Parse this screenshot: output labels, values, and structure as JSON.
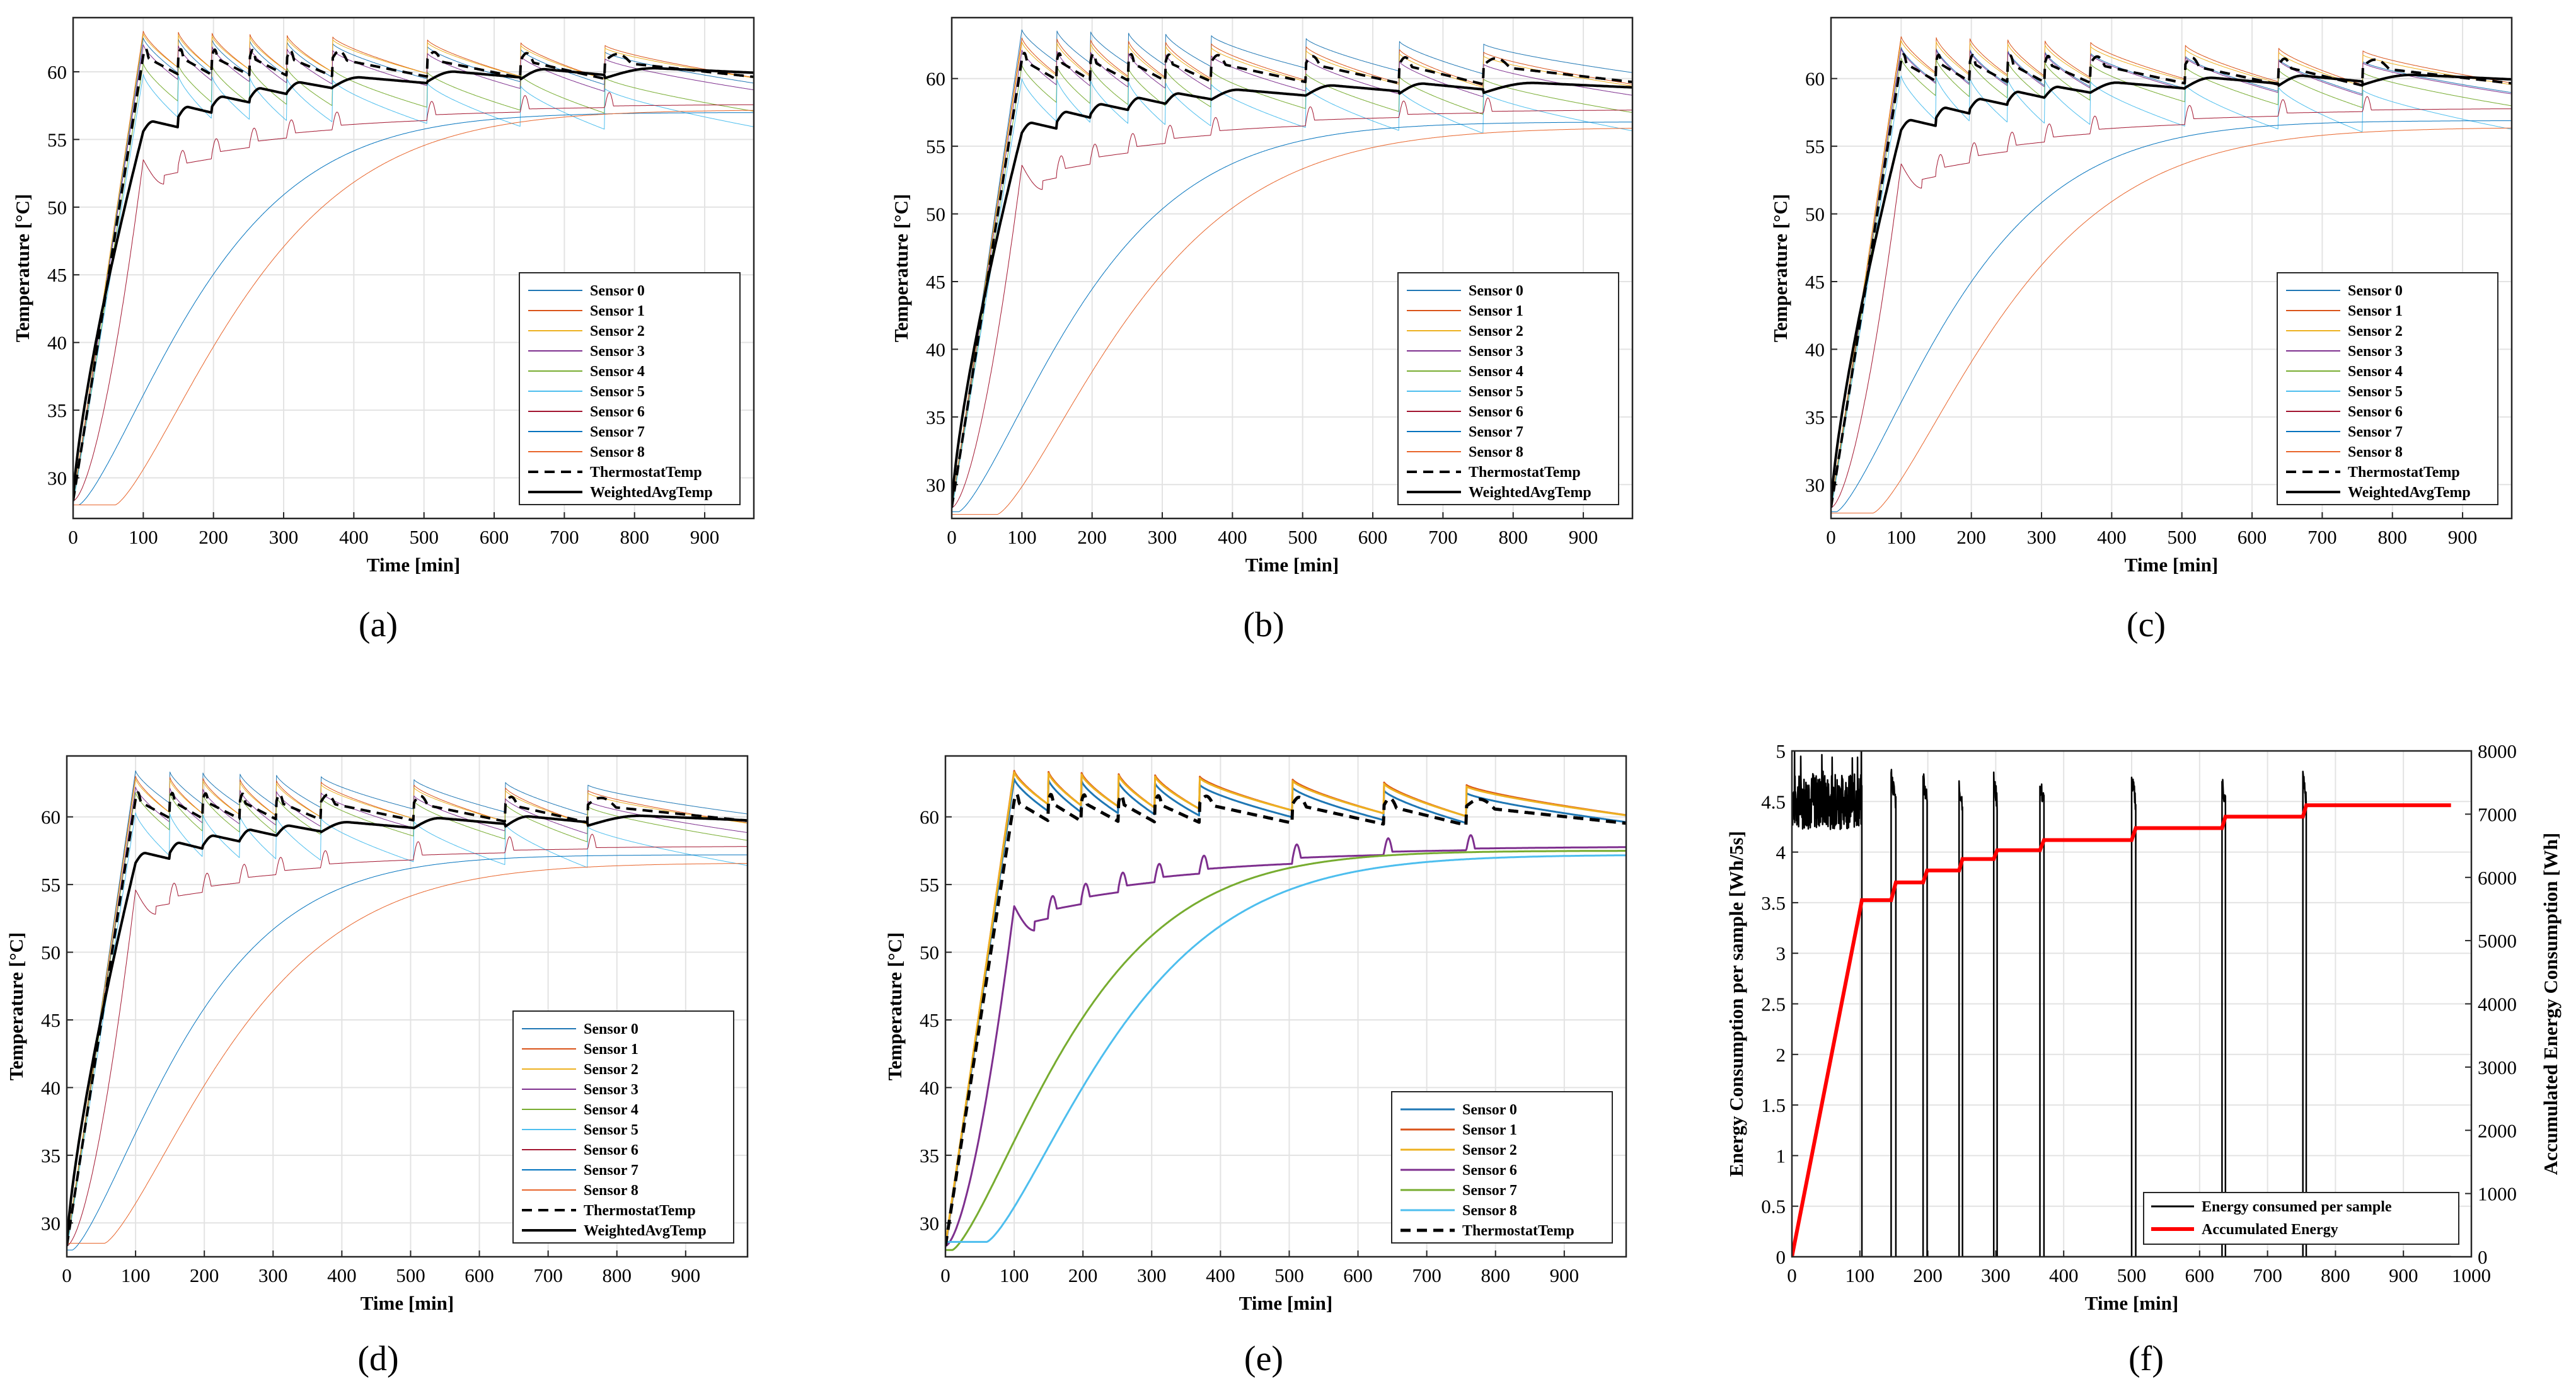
{
  "colors": {
    "s0": "#1f77b4",
    "s1": "#d95319",
    "s2": "#edb120",
    "s3": "#7e2f8e",
    "s4": "#77ac30",
    "s5": "#4dbeee",
    "s6": "#a2142f",
    "s7": "#0072bd",
    "s8": "#e8642a",
    "thermostat": "#000000",
    "weighted": "#000000",
    "energy": "#000000",
    "accum": "#ff0000",
    "grid": "#e3e3e3",
    "axis": "#262626"
  },
  "chart_data": [
    {
      "id": "a",
      "type": "line",
      "caption": "(a)",
      "xlabel": "Time [min]",
      "ylabel": "Temperature [°C]",
      "xlim": [
        0,
        970
      ],
      "ylim": [
        27,
        64
      ],
      "xticks": [
        "0",
        "100",
        "200",
        "300",
        "400",
        "500",
        "600",
        "700",
        "800",
        "900"
      ],
      "yticks": [
        "30",
        "35",
        "40",
        "45",
        "50",
        "55",
        "60"
      ],
      "grid": true,
      "legend_position": "lower-right",
      "heat_end": 100,
      "cycles": [
        100,
        150,
        198,
        252,
        305,
        370,
        505,
        638,
        758
      ],
      "series": [
        {
          "name": "Sensor 0",
          "color_key": "s0",
          "kind": "top",
          "start": 28.2,
          "top": 62.5,
          "drop": 2.6,
          "width": 1
        },
        {
          "name": "Sensor 1",
          "color_key": "s1",
          "kind": "top",
          "start": 28.3,
          "top": 63.0,
          "drop": 2.7,
          "width": 1
        },
        {
          "name": "Sensor 2",
          "color_key": "s2",
          "kind": "top",
          "start": 28.4,
          "top": 62.8,
          "drop": 2.5,
          "width": 1
        },
        {
          "name": "Sensor 3",
          "color_key": "s3",
          "kind": "top",
          "start": 28.2,
          "top": 62.0,
          "drop": 2.6,
          "width": 1
        },
        {
          "name": "Sensor 4",
          "color_key": "s4",
          "kind": "top",
          "start": 28.1,
          "top": 60.6,
          "drop": 2.8,
          "width": 1
        },
        {
          "name": "Sensor 5",
          "color_key": "s5",
          "kind": "top",
          "start": 28.0,
          "top": 59.8,
          "drop": 3.2,
          "width": 1
        },
        {
          "name": "Sensor 6",
          "color_key": "s6",
          "kind": "stair",
          "start": 28.3,
          "peak": 53.5,
          "end": 57.8,
          "width": 1
        },
        {
          "name": "Sensor 7",
          "color_key": "s7",
          "kind": "smooth",
          "start": 28.0,
          "end": 57.0,
          "tau": 210,
          "delay": 8,
          "width": 1
        },
        {
          "name": "Sensor 8",
          "color_key": "s8",
          "kind": "smooth",
          "start": 28.0,
          "end": 57.2,
          "tau": 230,
          "delay": 60,
          "width": 1
        },
        {
          "name": "ThermostatTemp",
          "color_key": "thermostat",
          "kind": "thermo",
          "start": 28.3,
          "top": 61.2,
          "drop": 1.4,
          "width": 4,
          "dash": "16,10"
        },
        {
          "name": "WeightedAvgTemp",
          "color_key": "weighted",
          "kind": "weighted",
          "start": 28.3,
          "peak": 55.6,
          "end": 59.6,
          "width": 4
        }
      ]
    },
    {
      "id": "b",
      "type": "line",
      "caption": "(b)",
      "xlabel": "Time [min]",
      "ylabel": "Temperature [°C]",
      "xlim": [
        0,
        970
      ],
      "ylim": [
        27.5,
        64.5
      ],
      "xticks": [
        "0",
        "100",
        "200",
        "300",
        "400",
        "500",
        "600",
        "700",
        "800",
        "900"
      ],
      "yticks": [
        "30",
        "35",
        "40",
        "45",
        "50",
        "55",
        "60"
      ],
      "grid": true,
      "legend_position": "lower-right",
      "heat_end": 100,
      "cycles": [
        100,
        150,
        198,
        252,
        305,
        370,
        505,
        638,
        758
      ],
      "series": [
        {
          "name": "Sensor 0",
          "color_key": "s0",
          "kind": "top",
          "start": 28.2,
          "top": 63.6,
          "drop": 2.4,
          "width": 1
        },
        {
          "name": "Sensor 1",
          "color_key": "s1",
          "kind": "top",
          "start": 28.3,
          "top": 63.0,
          "drop": 2.7,
          "width": 1
        },
        {
          "name": "Sensor 2",
          "color_key": "s2",
          "kind": "top",
          "start": 28.4,
          "top": 62.7,
          "drop": 2.5,
          "width": 1
        },
        {
          "name": "Sensor 3",
          "color_key": "s3",
          "kind": "top",
          "start": 28.2,
          "top": 62.1,
          "drop": 2.6,
          "width": 1
        },
        {
          "name": "Sensor 4",
          "color_key": "s4",
          "kind": "top",
          "start": 28.1,
          "top": 61.0,
          "drop": 2.8,
          "width": 1
        },
        {
          "name": "Sensor 5",
          "color_key": "s5",
          "kind": "top",
          "start": 28.0,
          "top": 60.0,
          "drop": 3.2,
          "width": 1
        },
        {
          "name": "Sensor 6",
          "color_key": "s6",
          "kind": "stair",
          "start": 28.3,
          "peak": 53.6,
          "end": 57.9,
          "width": 1
        },
        {
          "name": "Sensor 7",
          "color_key": "s7",
          "kind": "smooth",
          "start": 28.0,
          "end": 56.8,
          "tau": 215,
          "delay": 10,
          "width": 1
        },
        {
          "name": "Sensor 8",
          "color_key": "s8",
          "kind": "smooth",
          "start": 27.8,
          "end": 56.4,
          "tau": 240,
          "delay": 65,
          "width": 1
        },
        {
          "name": "ThermostatTemp",
          "color_key": "thermostat",
          "kind": "thermo",
          "start": 28.3,
          "top": 61.4,
          "drop": 1.5,
          "width": 4,
          "dash": "16,10"
        },
        {
          "name": "WeightedAvgTemp",
          "color_key": "weighted",
          "kind": "weighted",
          "start": 28.3,
          "peak": 56.0,
          "end": 59.0,
          "width": 4
        }
      ]
    },
    {
      "id": "c",
      "type": "line",
      "caption": "(c)",
      "xlabel": "Time [min]",
      "ylabel": "Temperature [°C]",
      "xlim": [
        0,
        970
      ],
      "ylim": [
        27.5,
        64.5
      ],
      "xticks": [
        "0",
        "100",
        "200",
        "300",
        "400",
        "500",
        "600",
        "700",
        "800",
        "900"
      ],
      "yticks": [
        "30",
        "35",
        "40",
        "45",
        "50",
        "55",
        "60"
      ],
      "grid": true,
      "legend_position": "lower-right",
      "heat_end": 100,
      "cycles": [
        100,
        150,
        198,
        252,
        305,
        370,
        505,
        638,
        758
      ],
      "series": [
        {
          "name": "Sensor 0",
          "color_key": "s0",
          "kind": "top",
          "start": 28.2,
          "top": 62.3,
          "drop": 2.6,
          "width": 1
        },
        {
          "name": "Sensor 1",
          "color_key": "s1",
          "kind": "top",
          "start": 28.3,
          "top": 63.1,
          "drop": 2.7,
          "width": 1
        },
        {
          "name": "Sensor 2",
          "color_key": "s2",
          "kind": "top",
          "start": 28.4,
          "top": 62.8,
          "drop": 2.5,
          "width": 1
        },
        {
          "name": "Sensor 3",
          "color_key": "s3",
          "kind": "top",
          "start": 28.2,
          "top": 62.2,
          "drop": 2.6,
          "width": 1
        },
        {
          "name": "Sensor 4",
          "color_key": "s4",
          "kind": "top",
          "start": 28.1,
          "top": 61.5,
          "drop": 2.8,
          "width": 1
        },
        {
          "name": "Sensor 5",
          "color_key": "s5",
          "kind": "top",
          "start": 28.0,
          "top": 60.2,
          "drop": 3.3,
          "width": 1
        },
        {
          "name": "Sensor 6",
          "color_key": "s6",
          "kind": "stair",
          "start": 28.3,
          "peak": 53.7,
          "end": 58.0,
          "width": 1
        },
        {
          "name": "Sensor 7",
          "color_key": "s7",
          "kind": "smooth",
          "start": 28.0,
          "end": 56.9,
          "tau": 210,
          "delay": 8,
          "width": 1
        },
        {
          "name": "Sensor 8",
          "color_key": "s8",
          "kind": "smooth",
          "start": 27.9,
          "end": 56.4,
          "tau": 235,
          "delay": 60,
          "width": 1
        },
        {
          "name": "ThermostatTemp",
          "color_key": "thermostat",
          "kind": "thermo",
          "start": 28.3,
          "top": 61.3,
          "drop": 1.5,
          "width": 4,
          "dash": "16,10"
        },
        {
          "name": "WeightedAvgTemp",
          "color_key": "weighted",
          "kind": "weighted",
          "start": 28.3,
          "peak": 56.2,
          "end": 59.6,
          "width": 4
        }
      ]
    },
    {
      "id": "d",
      "type": "line",
      "caption": "(d)",
      "xlabel": "Time [min]",
      "ylabel": "Temperature [°C]",
      "xlim": [
        0,
        990
      ],
      "ylim": [
        27.5,
        64.5
      ],
      "xticks": [
        "0",
        "100",
        "200",
        "300",
        "400",
        "500",
        "600",
        "700",
        "800",
        "900"
      ],
      "yticks": [
        "30",
        "35",
        "40",
        "45",
        "50",
        "55",
        "60"
      ],
      "grid": true,
      "legend_position": "lower-right",
      "heat_end": 100,
      "cycles": [
        100,
        150,
        198,
        252,
        305,
        370,
        505,
        638,
        758
      ],
      "series": [
        {
          "name": "Sensor 0",
          "color_key": "s0",
          "kind": "top",
          "start": 28.2,
          "top": 63.4,
          "drop": 2.4,
          "width": 1
        },
        {
          "name": "Sensor 1",
          "color_key": "s1",
          "kind": "top",
          "start": 28.3,
          "top": 63.0,
          "drop": 2.7,
          "width": 1
        },
        {
          "name": "Sensor 2",
          "color_key": "s2",
          "kind": "top",
          "start": 28.4,
          "top": 62.8,
          "drop": 2.5,
          "width": 1
        },
        {
          "name": "Sensor 3",
          "color_key": "s3",
          "kind": "top",
          "start": 28.2,
          "top": 62.2,
          "drop": 2.6,
          "width": 1
        },
        {
          "name": "Sensor 4",
          "color_key": "s4",
          "kind": "top",
          "start": 28.1,
          "top": 61.8,
          "drop": 2.8,
          "width": 1
        },
        {
          "name": "Sensor 5",
          "color_key": "s5",
          "kind": "top",
          "start": 28.0,
          "top": 60.3,
          "drop": 3.2,
          "width": 1
        },
        {
          "name": "Sensor 6",
          "color_key": "s6",
          "kind": "stair",
          "start": 28.3,
          "peak": 54.6,
          "end": 58.0,
          "width": 1
        },
        {
          "name": "Sensor 7",
          "color_key": "s7",
          "kind": "smooth",
          "start": 28.0,
          "end": 57.2,
          "tau": 200,
          "delay": 8,
          "width": 1
        },
        {
          "name": "Sensor 8",
          "color_key": "s8",
          "kind": "smooth",
          "start": 28.5,
          "end": 56.6,
          "tau": 230,
          "delay": 55,
          "width": 1
        },
        {
          "name": "ThermostatTemp",
          "color_key": "thermostat",
          "kind": "thermo",
          "start": 28.3,
          "top": 61.3,
          "drop": 1.4,
          "width": 4,
          "dash": "16,10"
        },
        {
          "name": "WeightedAvgTemp",
          "color_key": "weighted",
          "kind": "weighted",
          "start": 28.3,
          "peak": 56.6,
          "end": 59.4,
          "width": 4
        }
      ]
    },
    {
      "id": "e",
      "type": "line",
      "caption": "(e)",
      "xlabel": "Time [min]",
      "ylabel": "Temperature [°C]",
      "xlim": [
        0,
        990
      ],
      "ylim": [
        27.5,
        64.5
      ],
      "xticks": [
        "0",
        "100",
        "200",
        "300",
        "400",
        "500",
        "600",
        "700",
        "800",
        "900"
      ],
      "yticks": [
        "30",
        "35",
        "40",
        "45",
        "50",
        "55",
        "60"
      ],
      "grid": true,
      "legend_position": "lower-right",
      "heat_end": 100,
      "cycles": [
        100,
        150,
        198,
        252,
        305,
        370,
        505,
        638,
        758
      ],
      "series": [
        {
          "name": "Sensor 0",
          "color_key": "s0",
          "kind": "top",
          "start": 28.2,
          "top": 62.8,
          "drop": 2.4,
          "width": 3
        },
        {
          "name": "Sensor 1",
          "color_key": "s1",
          "kind": "top",
          "start": 28.3,
          "top": 63.4,
          "drop": 2.5,
          "width": 3
        },
        {
          "name": "Sensor 2",
          "color_key": "s2",
          "kind": "top",
          "start": 28.4,
          "top": 63.3,
          "drop": 2.4,
          "width": 3
        },
        {
          "name": "Sensor 6",
          "color_key": "s3",
          "kind": "stair",
          "start": 28.3,
          "peak": 53.4,
          "end": 58.0,
          "width": 3
        },
        {
          "name": "Sensor 7",
          "color_key": "s4",
          "kind": "smooth",
          "start": 28.0,
          "end": 57.5,
          "tau": 210,
          "delay": 10,
          "width": 3
        },
        {
          "name": "Sensor 8",
          "color_key": "s5",
          "kind": "smooth",
          "start": 28.6,
          "end": 57.2,
          "tau": 230,
          "delay": 60,
          "width": 3
        },
        {
          "name": "ThermostatTemp",
          "color_key": "thermostat",
          "kind": "thermo",
          "start": 28.3,
          "top": 61.2,
          "drop": 1.5,
          "width": 5,
          "dash": "16,10"
        }
      ]
    },
    {
      "id": "f",
      "type": "line",
      "caption": "(f)",
      "xlabel": "Time [min]",
      "ylabel_left": "Energy Consumption per sample [Wh/5s]",
      "ylabel_right": "Accumulated Energy Consumption [Wh]",
      "xlim": [
        0,
        1000
      ],
      "ylim_left": [
        0,
        5
      ],
      "ylim_right": [
        0,
        8000
      ],
      "xticks": [
        "0",
        "100",
        "200",
        "300",
        "400",
        "500",
        "600",
        "700",
        "800",
        "900",
        "1000"
      ],
      "yticks_left": [
        "0",
        "0.5",
        "1",
        "1.5",
        "2",
        "2.5",
        "3",
        "3.5",
        "4",
        "4.5",
        "5"
      ],
      "yticks_right": [
        "0",
        "1000",
        "2000",
        "3000",
        "4000",
        "5000",
        "6000",
        "7000",
        "8000"
      ],
      "grid": true,
      "legend_position": "lower-right",
      "energy_on_level": 4.5,
      "energy_pulses": [
        {
          "start": 146,
          "end": 153,
          "peak": 4.75
        },
        {
          "start": 193,
          "end": 199,
          "peak": 4.75
        },
        {
          "start": 246,
          "end": 251,
          "peak": 4.65
        },
        {
          "start": 297,
          "end": 302,
          "peak": 4.7
        },
        {
          "start": 365,
          "end": 371,
          "peak": 4.65
        },
        {
          "start": 500,
          "end": 506,
          "peak": 4.7
        },
        {
          "start": 633,
          "end": 638,
          "peak": 4.68
        },
        {
          "start": 752,
          "end": 757,
          "peak": 4.75
        }
      ],
      "accumulated": [
        {
          "t": 0,
          "wh": 0
        },
        {
          "t": 103,
          "wh": 5640
        },
        {
          "t": 146,
          "wh": 5640
        },
        {
          "t": 153,
          "wh": 5920
        },
        {
          "t": 193,
          "wh": 5920
        },
        {
          "t": 199,
          "wh": 6110
        },
        {
          "t": 246,
          "wh": 6110
        },
        {
          "t": 251,
          "wh": 6290
        },
        {
          "t": 297,
          "wh": 6290
        },
        {
          "t": 302,
          "wh": 6430
        },
        {
          "t": 365,
          "wh": 6430
        },
        {
          "t": 371,
          "wh": 6590
        },
        {
          "t": 500,
          "wh": 6590
        },
        {
          "t": 506,
          "wh": 6780
        },
        {
          "t": 633,
          "wh": 6780
        },
        {
          "t": 638,
          "wh": 6960
        },
        {
          "t": 752,
          "wh": 6960
        },
        {
          "t": 757,
          "wh": 7140
        },
        {
          "t": 970,
          "wh": 7140
        }
      ],
      "series": [
        {
          "name": "Energy consumed per sample",
          "color_key": "energy"
        },
        {
          "name": "Accumulated Energy",
          "color_key": "accum"
        }
      ]
    }
  ]
}
